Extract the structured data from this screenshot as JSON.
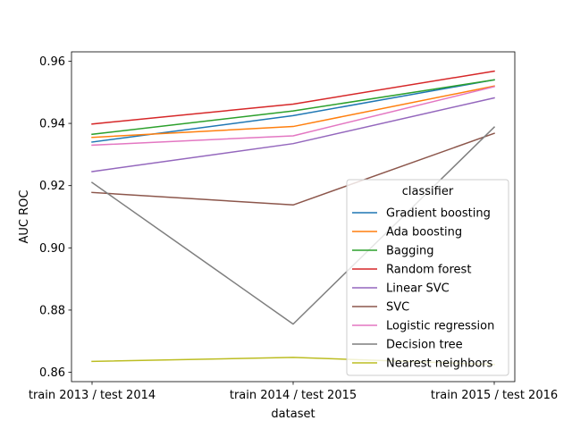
{
  "chart_data": {
    "type": "line",
    "title": "",
    "xlabel": "dataset",
    "ylabel": "AUC ROC",
    "categories": [
      "train 2013 / test 2014",
      "train 2014 / test 2015",
      "train 2015 / test 2016"
    ],
    "ylim": [
      0.857,
      0.963
    ],
    "yticks": [
      0.86,
      0.88,
      0.9,
      0.92,
      0.94,
      0.96
    ],
    "ytick_labels": [
      "0.86",
      "0.88",
      "0.90",
      "0.92",
      "0.94",
      "0.96"
    ],
    "grid": false,
    "legend": {
      "title": "classifier",
      "position": "lower-right"
    },
    "series": [
      {
        "name": "Gradient boosting",
        "color": "#1f77b4",
        "values": [
          0.934,
          0.9425,
          0.954
        ]
      },
      {
        "name": "Ada boosting",
        "color": "#ff7f0e",
        "values": [
          0.9355,
          0.939,
          0.952
        ]
      },
      {
        "name": "Bagging",
        "color": "#2ca02c",
        "values": [
          0.9365,
          0.944,
          0.954
        ]
      },
      {
        "name": "Random forest",
        "color": "#d62728",
        "values": [
          0.9398,
          0.9462,
          0.9568
        ]
      },
      {
        "name": "Linear SVC",
        "color": "#9467bd",
        "values": [
          0.9245,
          0.9335,
          0.9482
        ]
      },
      {
        "name": "SVC",
        "color": "#8c564b",
        "values": [
          0.9178,
          0.9138,
          0.9368
        ]
      },
      {
        "name": "Logistic regression",
        "color": "#e377c2",
        "values": [
          0.933,
          0.936,
          0.9518
        ]
      },
      {
        "name": "Decision tree",
        "color": "#7f7f7f",
        "values": [
          0.921,
          0.8755,
          0.9388
        ]
      },
      {
        "name": "Nearest neighbors",
        "color": "#bcbd22",
        "values": [
          0.8635,
          0.8648,
          0.8625
        ]
      }
    ]
  }
}
